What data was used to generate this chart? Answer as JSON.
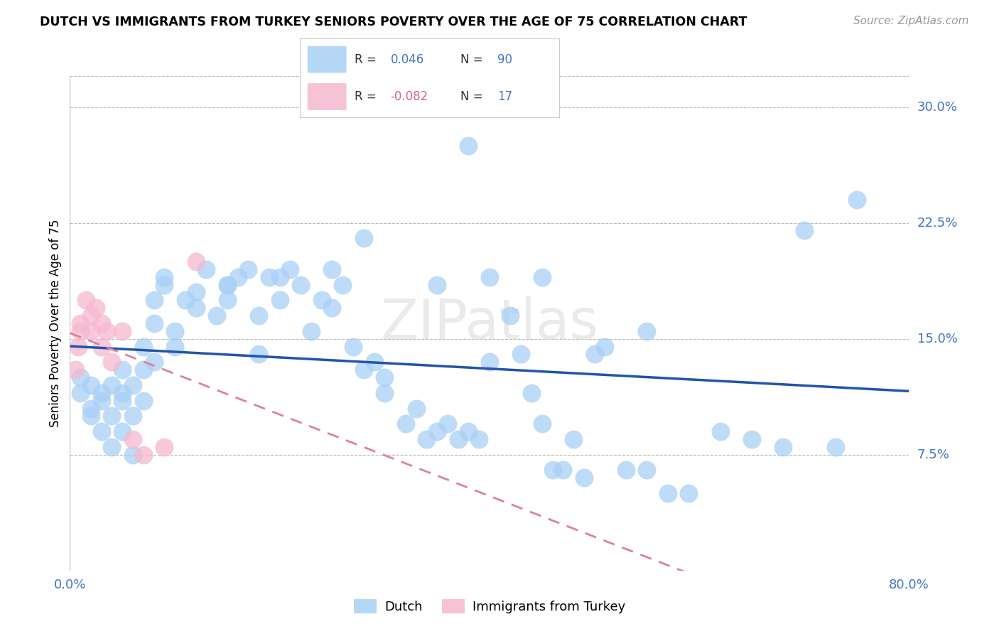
{
  "title": "DUTCH VS IMMIGRANTS FROM TURKEY SENIORS POVERTY OVER THE AGE OF 75 CORRELATION CHART",
  "source": "Source: ZipAtlas.com",
  "ylabel": "Seniors Poverty Over the Age of 75",
  "right_yticks": [
    "30.0%",
    "22.5%",
    "15.0%",
    "7.5%"
  ],
  "right_ytick_vals": [
    0.3,
    0.225,
    0.15,
    0.075
  ],
  "xlim": [
    0.0,
    0.8
  ],
  "ylim": [
    0.0,
    0.32
  ],
  "dutch_R": 0.046,
  "dutch_N": 90,
  "turkey_R": -0.082,
  "turkey_N": 17,
  "dutch_color": "#A8D0F5",
  "turkey_color": "#F5B8CF",
  "dutch_line_color": "#2255AA",
  "turkey_line_color": "#E08098",
  "legend_dutch_label": "Dutch",
  "legend_turkey_label": "Immigrants from Turkey",
  "watermark": "ZIPatlas",
  "dutch_x": [
    0.01,
    0.01,
    0.02,
    0.02,
    0.02,
    0.03,
    0.03,
    0.03,
    0.04,
    0.04,
    0.04,
    0.05,
    0.05,
    0.05,
    0.06,
    0.06,
    0.06,
    0.07,
    0.07,
    0.07,
    0.08,
    0.08,
    0.09,
    0.09,
    0.1,
    0.1,
    0.11,
    0.12,
    0.12,
    0.13,
    0.14,
    0.15,
    0.15,
    0.16,
    0.17,
    0.18,
    0.19,
    0.2,
    0.2,
    0.21,
    0.22,
    0.23,
    0.24,
    0.25,
    0.26,
    0.27,
    0.28,
    0.29,
    0.3,
    0.3,
    0.32,
    0.33,
    0.34,
    0.35,
    0.36,
    0.37,
    0.38,
    0.39,
    0.4,
    0.4,
    0.42,
    0.43,
    0.44,
    0.45,
    0.46,
    0.47,
    0.48,
    0.49,
    0.5,
    0.51,
    0.53,
    0.55,
    0.57,
    0.59,
    0.62,
    0.65,
    0.68,
    0.7,
    0.73,
    0.75,
    0.55,
    0.38,
    0.28,
    0.18,
    0.08,
    0.45,
    0.35,
    0.25,
    0.15,
    0.05
  ],
  "dutch_y": [
    0.115,
    0.125,
    0.12,
    0.1,
    0.105,
    0.11,
    0.115,
    0.09,
    0.12,
    0.1,
    0.08,
    0.11,
    0.115,
    0.09,
    0.12,
    0.1,
    0.075,
    0.13,
    0.11,
    0.145,
    0.16,
    0.175,
    0.185,
    0.19,
    0.155,
    0.145,
    0.175,
    0.17,
    0.18,
    0.195,
    0.165,
    0.175,
    0.185,
    0.19,
    0.195,
    0.165,
    0.19,
    0.175,
    0.19,
    0.195,
    0.185,
    0.155,
    0.175,
    0.17,
    0.185,
    0.145,
    0.13,
    0.135,
    0.115,
    0.125,
    0.095,
    0.105,
    0.085,
    0.09,
    0.095,
    0.085,
    0.09,
    0.085,
    0.135,
    0.19,
    0.165,
    0.14,
    0.115,
    0.095,
    0.065,
    0.065,
    0.085,
    0.06,
    0.14,
    0.145,
    0.065,
    0.065,
    0.05,
    0.05,
    0.09,
    0.085,
    0.08,
    0.22,
    0.08,
    0.24,
    0.155,
    0.275,
    0.215,
    0.14,
    0.135,
    0.19,
    0.185,
    0.195,
    0.185,
    0.13
  ],
  "turkey_x": [
    0.005,
    0.008,
    0.01,
    0.01,
    0.015,
    0.02,
    0.02,
    0.025,
    0.03,
    0.03,
    0.035,
    0.04,
    0.05,
    0.06,
    0.07,
    0.09,
    0.12
  ],
  "turkey_y": [
    0.13,
    0.145,
    0.155,
    0.16,
    0.175,
    0.155,
    0.165,
    0.17,
    0.145,
    0.16,
    0.155,
    0.135,
    0.155,
    0.085,
    0.075,
    0.08,
    0.2
  ]
}
